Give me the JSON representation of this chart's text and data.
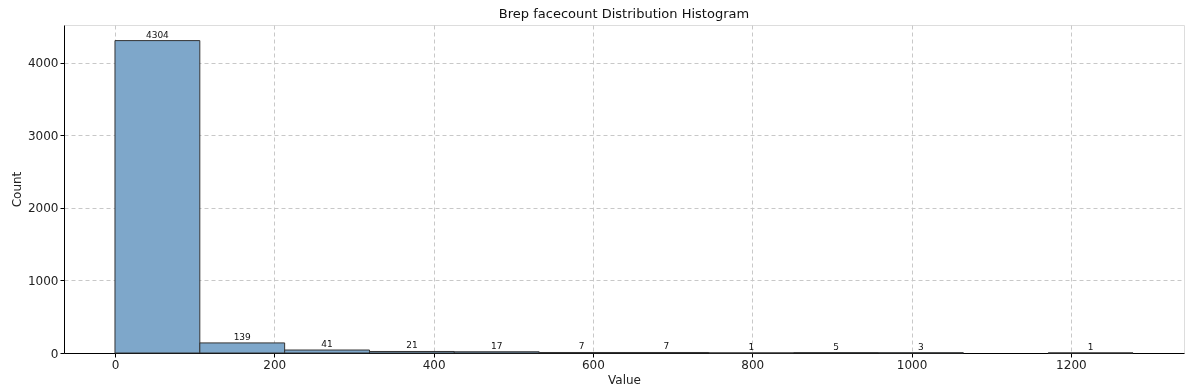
{
  "chart_data": {
    "type": "histogram",
    "title": "Brep facecount Distribution Histogram",
    "xlabel": "Value",
    "ylabel": "Count",
    "bins": [
      0,
      106.5,
      213,
      319.5,
      426,
      532.5,
      639,
      745.5,
      852,
      958.5,
      1065,
      1171.5,
      1278
    ],
    "values": [
      4304,
      139,
      41,
      21,
      17,
      7,
      7,
      1,
      5,
      3,
      0,
      1
    ],
    "value_labels": [
      "4304",
      "139",
      "41",
      "21",
      "17",
      "7",
      "7",
      "1",
      "5",
      "3",
      null,
      "1"
    ],
    "color": "#7ea7ca",
    "xlim": [
      -64,
      1342
    ],
    "xticks": [
      0,
      200,
      400,
      600,
      800,
      1000,
      1200
    ],
    "ylim": [
      0,
      4519
    ],
    "yticks": [
      0,
      1000,
      2000,
      3000,
      4000
    ],
    "grid": true,
    "legend": false
  }
}
